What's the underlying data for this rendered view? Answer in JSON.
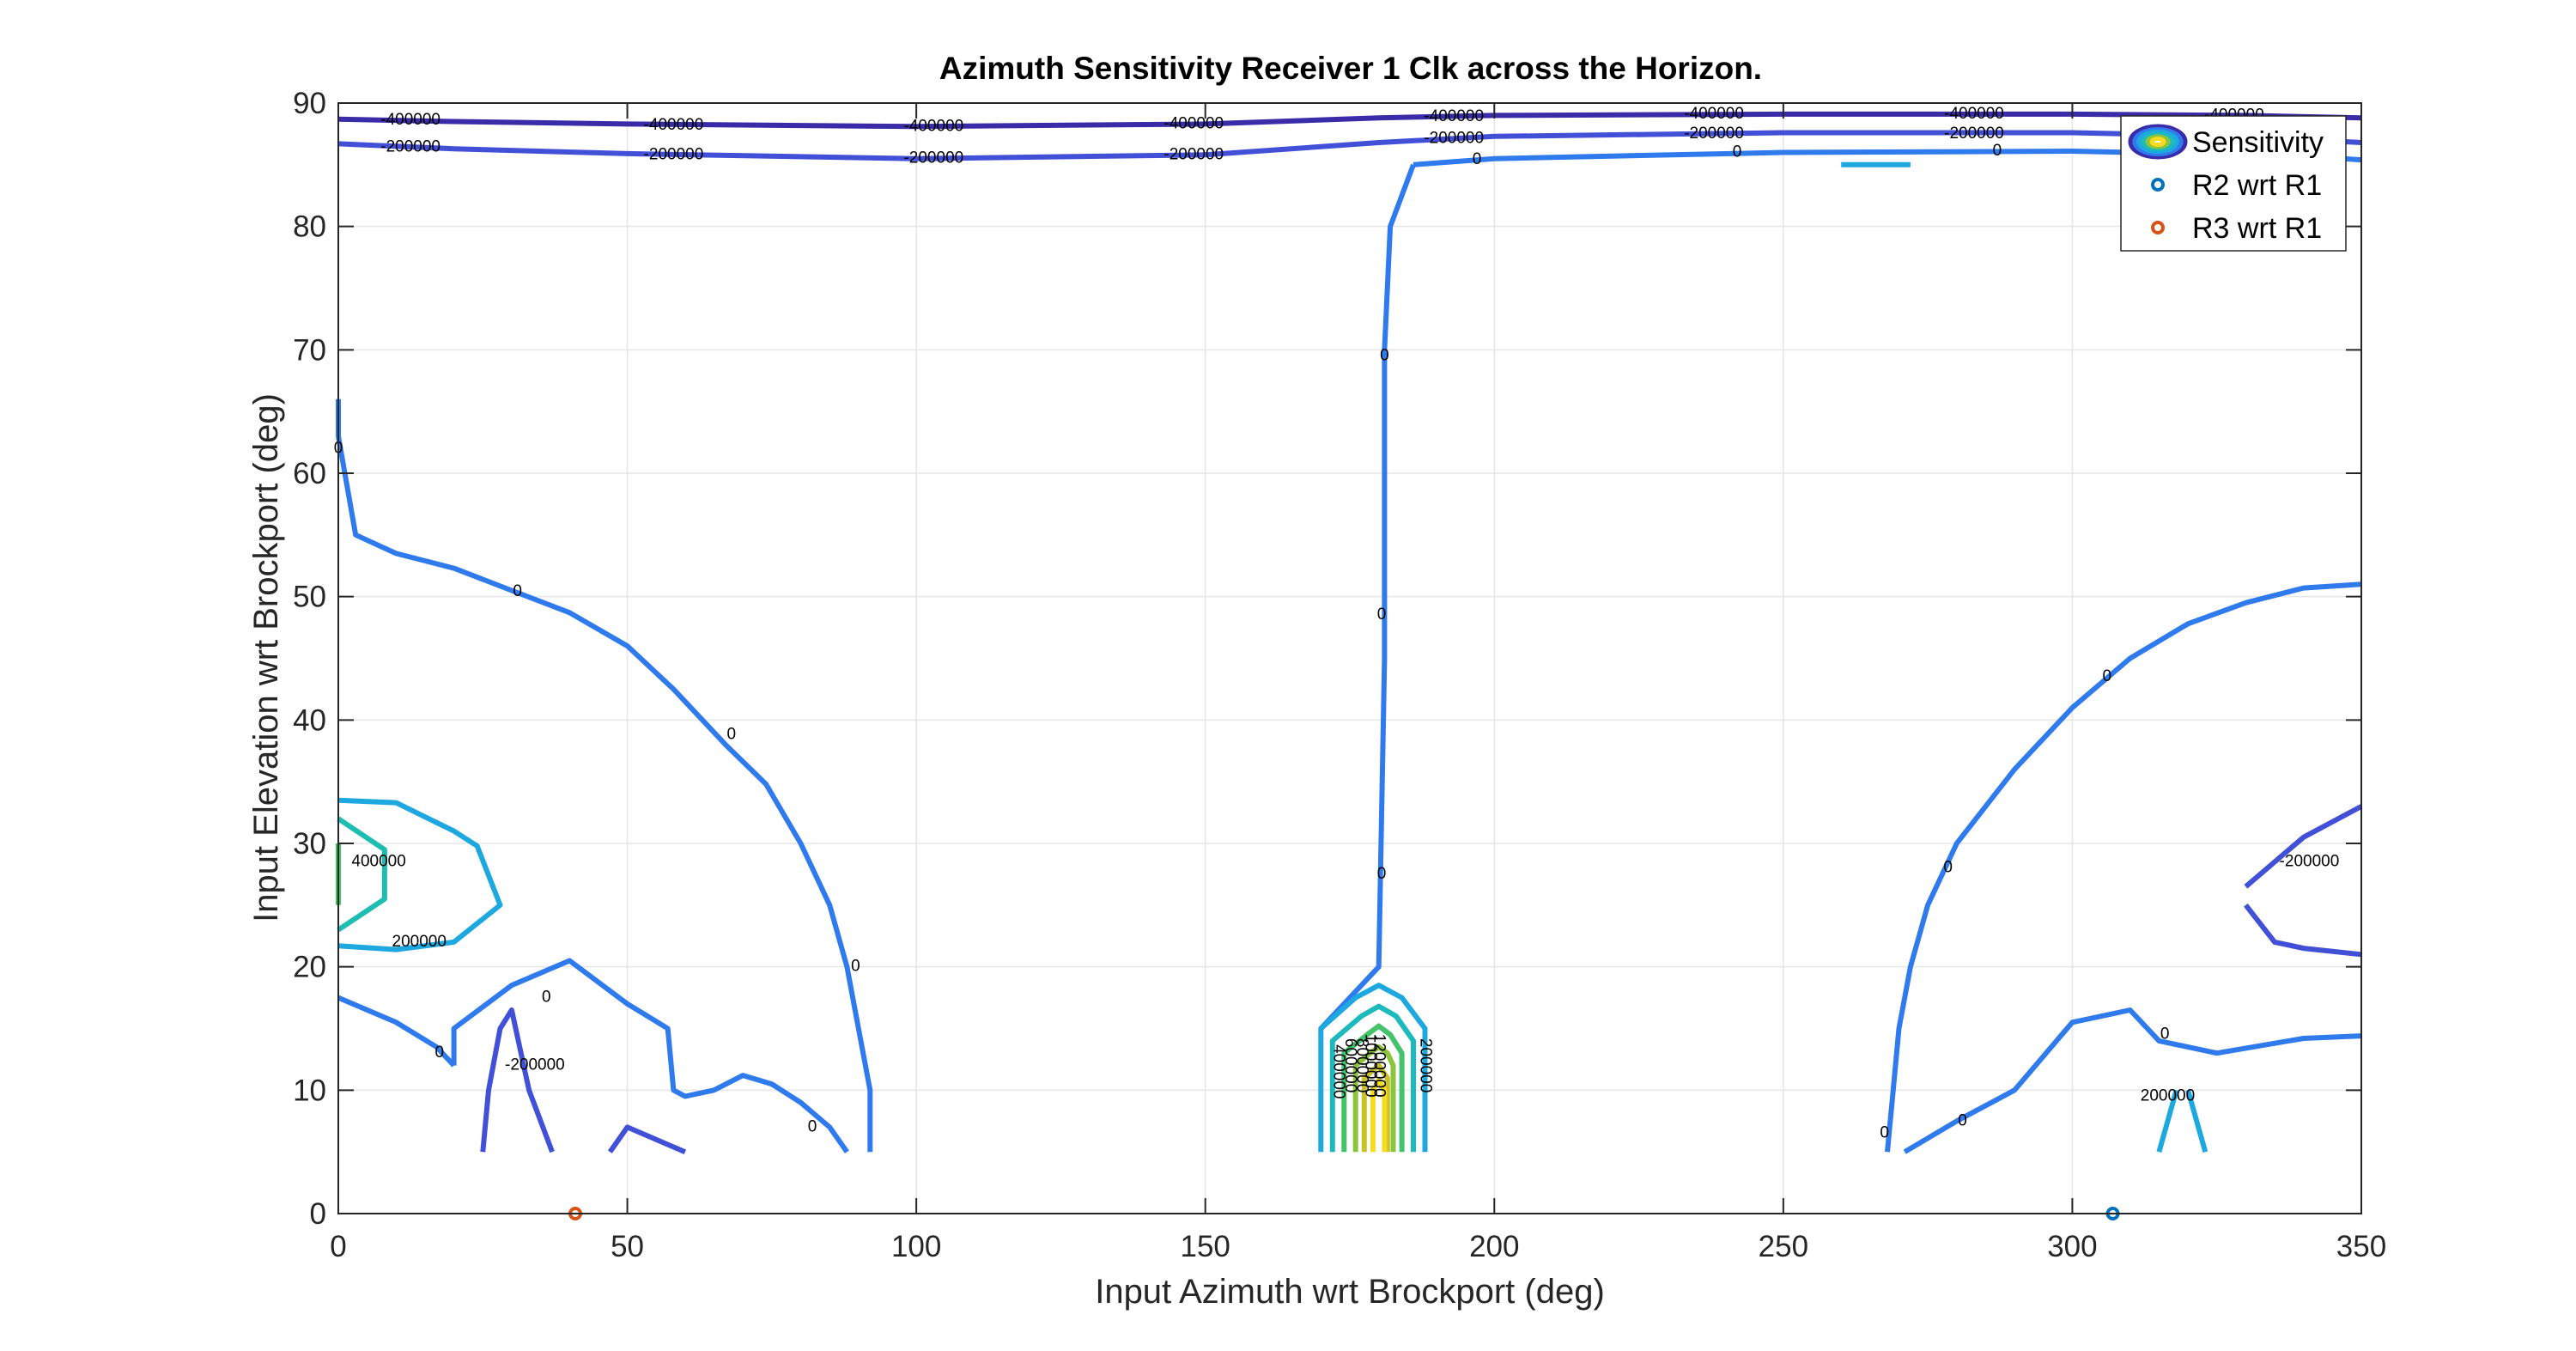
{
  "chart_data": {
    "type": "contour",
    "title": "Azimuth Sensitivity Receiver 1 Clk across the Horizon.",
    "xlabel": "Input Azimuth wrt Brockport (deg)",
    "ylabel": "Input Elevation wrt Brockport (deg)",
    "xlim": [
      0,
      350
    ],
    "ylim": [
      0,
      90
    ],
    "xticks": [
      0,
      50,
      100,
      150,
      200,
      250,
      300,
      350
    ],
    "yticks": [
      0,
      10,
      20,
      30,
      40,
      50,
      60,
      70,
      80,
      90
    ],
    "grid": true,
    "legend_position": "top-right",
    "legend": [
      {
        "label": "Sensitivity",
        "marker": "contour-ellipses"
      },
      {
        "label": "R2 wrt R1",
        "marker": "circle",
        "color": "#0072BD"
      },
      {
        "label": "R3 wrt R1",
        "marker": "circle",
        "color": "#D95319"
      }
    ],
    "points": [
      {
        "name": "R2 wrt R1",
        "x": 307,
        "y": 0,
        "color": "#0072BD"
      },
      {
        "name": "R3 wrt R1",
        "x": 41,
        "y": 0,
        "color": "#D95319"
      }
    ],
    "contours": [
      {
        "level": -400000,
        "color": "#3A2BA8",
        "points": [
          [
            0,
            88.7
          ],
          [
            20,
            88.5
          ],
          [
            50,
            88.3
          ],
          [
            100,
            88.1
          ],
          [
            150,
            88.3
          ],
          [
            180,
            88.8
          ],
          [
            200,
            89.0
          ],
          [
            250,
            89.1
          ],
          [
            300,
            89.1
          ],
          [
            330,
            89.0
          ],
          [
            350,
            88.8
          ]
        ]
      },
      {
        "level": -200000,
        "color": "#4250D8",
        "points": [
          [
            0,
            86.7
          ],
          [
            20,
            86.3
          ],
          [
            50,
            85.9
          ],
          [
            100,
            85.5
          ],
          [
            150,
            85.8
          ],
          [
            180,
            86.8
          ],
          [
            200,
            87.3
          ],
          [
            250,
            87.6
          ],
          [
            300,
            87.6
          ],
          [
            330,
            87.3
          ],
          [
            350,
            86.8
          ]
        ]
      },
      {
        "level": 0,
        "color": "#2F7AEC",
        "points": [
          [
            186,
            85
          ],
          [
            200,
            85.5
          ],
          [
            250,
            86.0
          ],
          [
            300,
            86.1
          ],
          [
            340,
            85.7
          ],
          [
            350,
            85.4
          ]
        ]
      },
      {
        "level": 0,
        "color": "#2F7AEC",
        "points": [
          [
            170,
            15
          ],
          [
            180,
            20
          ],
          [
            181,
            45
          ],
          [
            181,
            70
          ],
          [
            182,
            80
          ],
          [
            186,
            85
          ]
        ]
      },
      {
        "level": 0,
        "color": "#2F7AEC",
        "points": [
          [
            0,
            66
          ],
          [
            0,
            63
          ],
          [
            3,
            55
          ],
          [
            10,
            53.5
          ],
          [
            20,
            52.3
          ],
          [
            30,
            50.5
          ],
          [
            40,
            48.7
          ],
          [
            50,
            46
          ],
          [
            58,
            42.5
          ],
          [
            67,
            38
          ],
          [
            74,
            34.8
          ],
          [
            80,
            30
          ],
          [
            85,
            25
          ],
          [
            88,
            20
          ],
          [
            90,
            15
          ],
          [
            92,
            10
          ],
          [
            92,
            5
          ]
        ]
      },
      {
        "level": 0,
        "color": "#2F7AEC",
        "points": [
          [
            0,
            17.5
          ],
          [
            10,
            15.5
          ],
          [
            17,
            13.5
          ],
          [
            20,
            12
          ]
        ]
      },
      {
        "level": 0,
        "color": "#2F7AEC",
        "points": [
          [
            20,
            12
          ],
          [
            20,
            15
          ],
          [
            30,
            18.5
          ],
          [
            40,
            20.5
          ],
          [
            50,
            17
          ],
          [
            57,
            15
          ],
          [
            58,
            10
          ],
          [
            60,
            9.5
          ],
          [
            65,
            10
          ],
          [
            70,
            11.2
          ],
          [
            75,
            10.5
          ],
          [
            80,
            9
          ],
          [
            85,
            7
          ],
          [
            88,
            5
          ]
        ]
      },
      {
        "level": 0,
        "color": "#2F7AEC",
        "points": [
          [
            268,
            5
          ],
          [
            269,
            10
          ],
          [
            270,
            15
          ],
          [
            272,
            20
          ],
          [
            275,
            25
          ],
          [
            280,
            30
          ],
          [
            290,
            36
          ],
          [
            300,
            41
          ],
          [
            310,
            45
          ],
          [
            320,
            47.8
          ],
          [
            330,
            49.5
          ],
          [
            340,
            50.7
          ],
          [
            350,
            51
          ]
        ]
      },
      {
        "level": 0,
        "color": "#2F7AEC",
        "points": [
          [
            271,
            5
          ],
          [
            280,
            7.5
          ],
          [
            290,
            10
          ],
          [
            300,
            15.5
          ],
          [
            310,
            16.5
          ],
          [
            315,
            14
          ],
          [
            325,
            13
          ],
          [
            340,
            14.2
          ],
          [
            350,
            14.4
          ]
        ]
      },
      {
        "level": 200000,
        "color": "#1DA8E0",
        "points": [
          [
            260,
            85
          ],
          [
            272,
            85
          ]
        ]
      },
      {
        "level": 200000,
        "color": "#1DA8E0",
        "points": [
          [
            0,
            33.5
          ],
          [
            10,
            33.3
          ],
          [
            20,
            31
          ],
          [
            24,
            29.8
          ],
          [
            28,
            25
          ],
          [
            20,
            22
          ],
          [
            10,
            21.4
          ],
          [
            0,
            21.7
          ]
        ]
      },
      {
        "level": 200000,
        "color": "#1DA8E0",
        "points": [
          [
            315,
            5
          ],
          [
            318,
            10
          ]
        ]
      },
      {
        "level": 200000,
        "color": "#1DA8E0",
        "points": [
          [
            320,
            10
          ],
          [
            323,
            5
          ]
        ]
      },
      {
        "level": -200000,
        "color": "#4250D8",
        "points": [
          [
            25,
            5
          ],
          [
            26,
            10
          ],
          [
            28,
            15
          ],
          [
            30,
            16.5
          ],
          [
            33,
            10
          ],
          [
            37,
            5
          ]
        ]
      },
      {
        "level": -200000,
        "color": "#4250D8",
        "points": [
          [
            47,
            5
          ],
          [
            50,
            7
          ],
          [
            60,
            5
          ]
        ]
      },
      {
        "level": -200000,
        "color": "#4250D8",
        "points": [
          [
            330,
            25
          ],
          [
            335,
            22
          ],
          [
            340,
            21.5
          ],
          [
            350,
            21
          ]
        ]
      },
      {
        "level": -200000,
        "color": "#4250D8",
        "points": [
          [
            330,
            26.5
          ],
          [
            340,
            30.5
          ],
          [
            350,
            33
          ]
        ]
      },
      {
        "level": 400000,
        "color": "#1DBDB2",
        "points": [
          [
            0,
            32
          ],
          [
            8,
            29.5
          ],
          [
            8,
            25.5
          ],
          [
            0,
            23
          ]
        ]
      },
      {
        "level": 600000,
        "color": "#45C060",
        "points": [
          [
            0,
            30
          ],
          [
            0,
            25
          ]
        ]
      },
      {
        "level": 200000,
        "color": "#1DA8E0",
        "points": [
          [
            170,
            5
          ],
          [
            170,
            15
          ],
          [
            176,
            17.5
          ],
          [
            180,
            18.5
          ],
          [
            184,
            17.5
          ],
          [
            188,
            15
          ],
          [
            188,
            5
          ]
        ]
      },
      {
        "level": 400000,
        "color": "#1CBABC",
        "points": [
          [
            172,
            5
          ],
          [
            172,
            14
          ],
          [
            177,
            16
          ],
          [
            180,
            16.8
          ],
          [
            183,
            16
          ],
          [
            186,
            14
          ],
          [
            186,
            5
          ]
        ]
      },
      {
        "level": 600000,
        "color": "#44C26C",
        "points": [
          [
            174,
            5
          ],
          [
            174,
            13
          ],
          [
            178,
            14.5
          ],
          [
            180,
            15.2
          ],
          [
            182,
            14.5
          ],
          [
            184,
            13
          ],
          [
            184,
            5
          ]
        ]
      },
      {
        "level": 800000,
        "color": "#8CC53C",
        "points": [
          [
            176,
            5
          ],
          [
            176,
            12
          ],
          [
            178.5,
            13
          ],
          [
            180,
            13.5
          ],
          [
            181.5,
            13
          ],
          [
            182.5,
            12
          ],
          [
            182.5,
            5
          ]
        ]
      },
      {
        "level": 1000000,
        "color": "#C9C12A",
        "points": [
          [
            177.5,
            5
          ],
          [
            177.5,
            11
          ],
          [
            180,
            12
          ],
          [
            181.5,
            11
          ],
          [
            181.5,
            5
          ]
        ]
      },
      {
        "level": 1200000,
        "color": "#F5DC21",
        "points": [
          [
            179,
            5
          ],
          [
            179,
            10
          ],
          [
            180,
            10.8
          ],
          [
            181,
            10
          ],
          [
            181,
            5
          ]
        ]
      }
    ],
    "contour_labels": [
      {
        "text": "-400000",
        "x": 12.5,
        "y": 88.6
      },
      {
        "text": "-400000",
        "x": 58,
        "y": 88.2
      },
      {
        "text": "-400000",
        "x": 103,
        "y": 88.1
      },
      {
        "text": "-400000",
        "x": 148,
        "y": 88.3
      },
      {
        "text": "-400000",
        "x": 193,
        "y": 88.9
      },
      {
        "text": "-400000",
        "x": 238,
        "y": 89.1
      },
      {
        "text": "-400000",
        "x": 283,
        "y": 89.1
      },
      {
        "text": "-400000",
        "x": 328,
        "y": 89.0
      },
      {
        "text": "-200000",
        "x": 12.5,
        "y": 86.4
      },
      {
        "text": "-200000",
        "x": 58,
        "y": 85.8
      },
      {
        "text": "-200000",
        "x": 103,
        "y": 85.5
      },
      {
        "text": "-200000",
        "x": 148,
        "y": 85.8
      },
      {
        "text": "-200000",
        "x": 193,
        "y": 87.1
      },
      {
        "text": "-200000",
        "x": 238,
        "y": 87.5
      },
      {
        "text": "-200000",
        "x": 283,
        "y": 87.5
      },
      {
        "text": "0",
        "x": 197,
        "y": 85.4
      },
      {
        "text": "0",
        "x": 242,
        "y": 86.0
      },
      {
        "text": "0",
        "x": 287,
        "y": 86.1
      },
      {
        "text": "0",
        "x": 0,
        "y": 62
      },
      {
        "text": "0",
        "x": 31,
        "y": 50.4
      },
      {
        "text": "0",
        "x": 68,
        "y": 38.8
      },
      {
        "text": "0",
        "x": 89.5,
        "y": 20
      },
      {
        "text": "0",
        "x": 82,
        "y": 7
      },
      {
        "text": "0",
        "x": 36,
        "y": 17.5
      },
      {
        "text": "0",
        "x": 17.5,
        "y": 13
      },
      {
        "text": "0",
        "x": 181,
        "y": 69.5
      },
      {
        "text": "0",
        "x": 180.5,
        "y": 48.5
      },
      {
        "text": "0",
        "x": 180.5,
        "y": 27.5
      },
      {
        "text": "0",
        "x": 267.5,
        "y": 6.5
      },
      {
        "text": "0",
        "x": 278.5,
        "y": 28
      },
      {
        "text": "0",
        "x": 306,
        "y": 43.5
      },
      {
        "text": "0",
        "x": 281,
        "y": 7.5
      },
      {
        "text": "0",
        "x": 316,
        "y": 14.5
      },
      {
        "text": "-200000",
        "x": 34,
        "y": 12
      },
      {
        "text": "-200000",
        "x": 341,
        "y": 28.5
      },
      {
        "text": "200000",
        "x": 14,
        "y": 22
      },
      {
        "text": "200000",
        "x": 316.5,
        "y": 9.5
      },
      {
        "text": "400000",
        "x": 7,
        "y": 28.5
      },
      {
        "text": "200000",
        "x": 188,
        "y": 12
      },
      {
        "text": "400000",
        "x": 173,
        "y": 11.5
      },
      {
        "text": "600000",
        "x": 175,
        "y": 12
      },
      {
        "text": "800000",
        "x": 177,
        "y": 12
      },
      {
        "text": "1000000",
        "x": 178.5,
        "y": 12
      },
      {
        "text": "1200000",
        "x": 180,
        "y": 12
      }
    ]
  }
}
